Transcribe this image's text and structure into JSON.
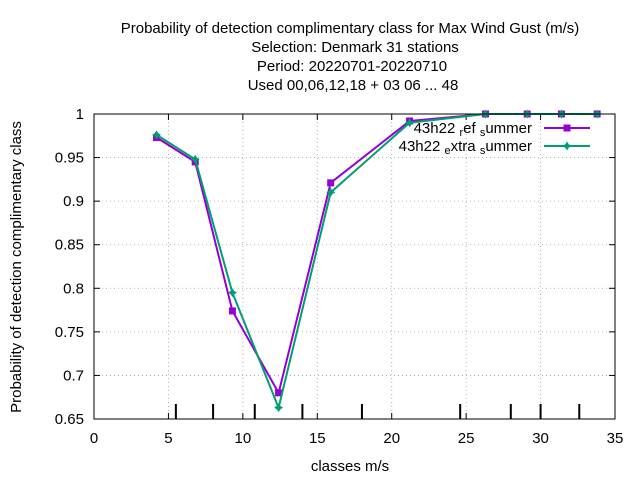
{
  "chart_data": {
    "type": "line",
    "title_lines": [
      "Probability of detection complimentary class  for Max Wind Gust (m/s)",
      "Selection: Denmark     31 stations",
      "Period: 20220701-20220710",
      "Used  00,06,12,18  + 03 06 ... 48"
    ],
    "xlabel": "classes m/s",
    "ylabel": "Probability of detection complimentary class",
    "xlim": [
      0,
      35
    ],
    "ylim": [
      0.65,
      1.0
    ],
    "xticks": [
      0,
      5,
      10,
      15,
      20,
      25,
      30,
      35
    ],
    "xtick_labels": [
      "0",
      "5",
      "10",
      "15",
      "20",
      "25",
      "30",
      "35"
    ],
    "yticks": [
      0.65,
      0.7,
      0.75,
      0.8,
      0.85,
      0.9,
      0.95,
      1.0
    ],
    "ytick_labels": [
      "0.65",
      "0.7",
      "0.75",
      "0.8",
      "0.85",
      "0.9",
      "0.95",
      "1"
    ],
    "grid": true,
    "legend_position": "top-right",
    "class_markers_x": [
      5.5,
      8.0,
      10.8,
      14.0,
      18.0,
      24.6,
      28.0,
      30.0,
      32.6
    ],
    "series": [
      {
        "name": "43h22_ref_summer",
        "color": "#9400d3",
        "marker": "square",
        "x": [
          4.2,
          6.8,
          9.3,
          12.4,
          15.9,
          21.2,
          26.3,
          29.1,
          31.4,
          33.8
        ],
        "y": [
          0.973,
          0.945,
          0.774,
          0.68,
          0.921,
          0.992,
          1.0,
          1.0,
          1.0,
          1.0
        ]
      },
      {
        "name": "43h22_extra_summer",
        "color": "#009e73",
        "marker": "star",
        "x": [
          4.2,
          6.8,
          9.3,
          12.4,
          15.9,
          21.2,
          26.3,
          29.1,
          31.4,
          33.8
        ],
        "y": [
          0.976,
          0.948,
          0.795,
          0.663,
          0.91,
          0.99,
          1.0,
          1.0,
          1.0,
          1.0
        ]
      }
    ]
  }
}
